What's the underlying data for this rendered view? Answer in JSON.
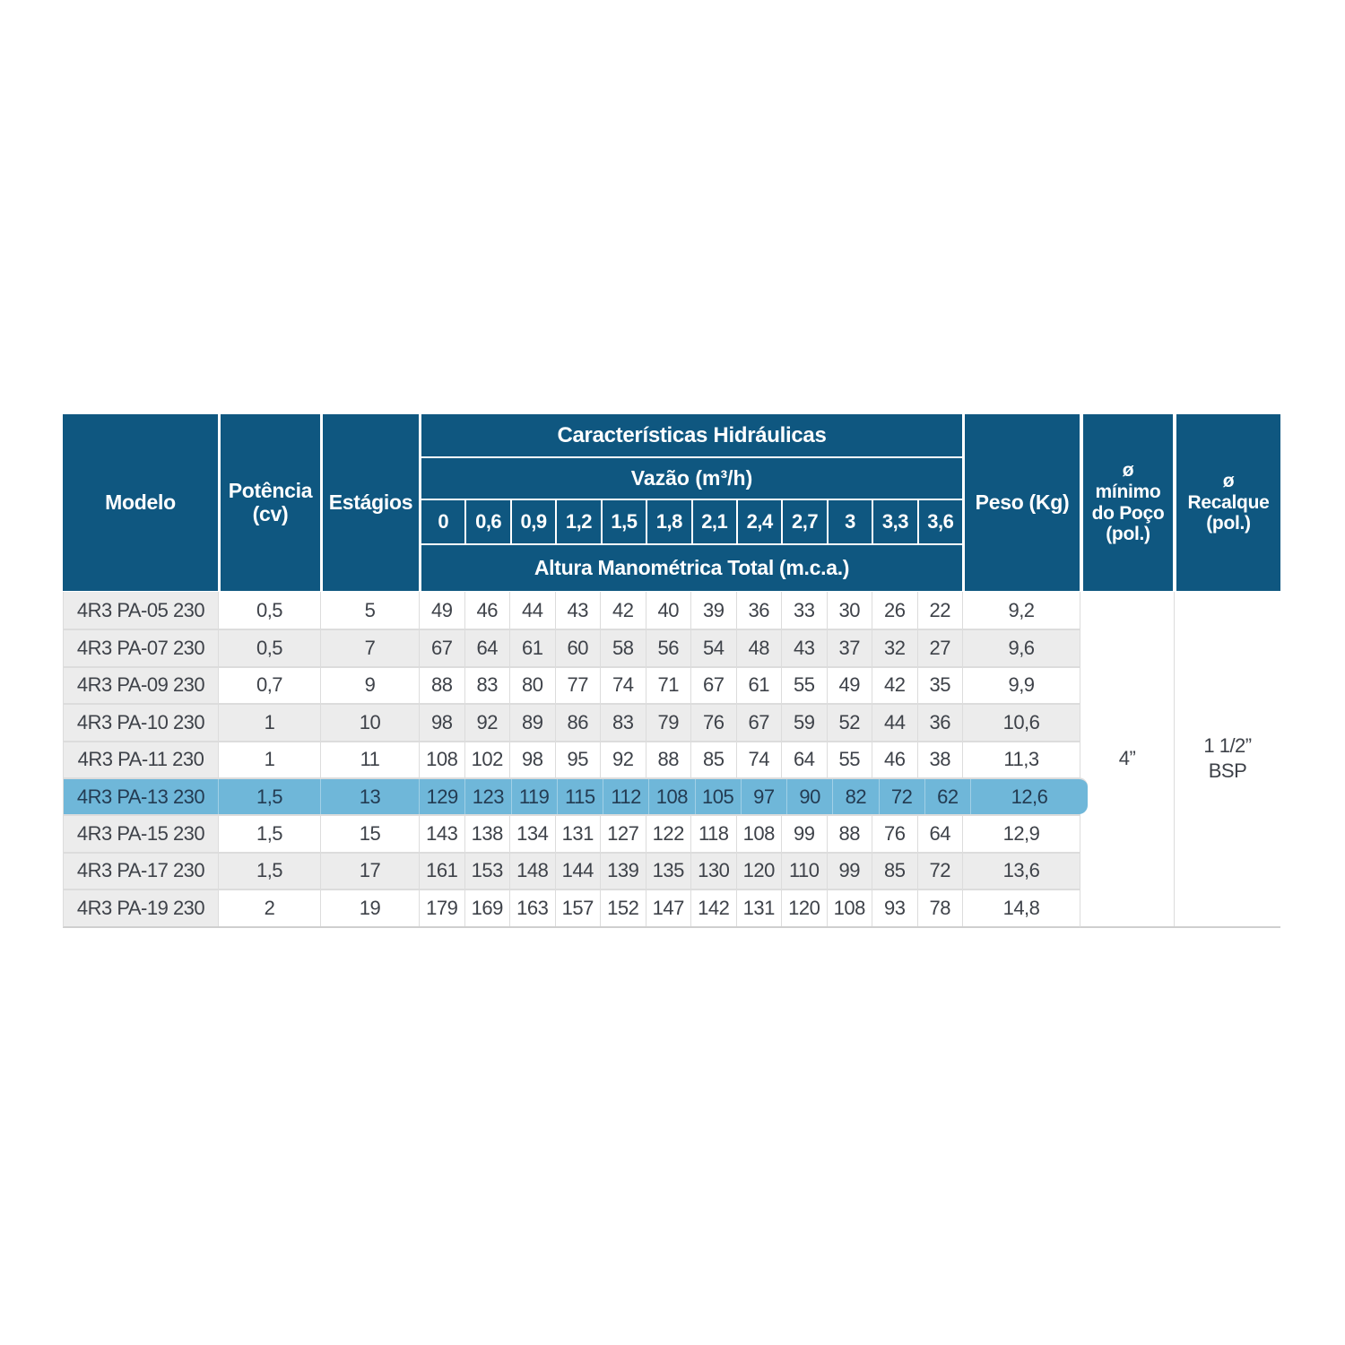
{
  "colors": {
    "header_bg": "#0F5780",
    "header_text": "#FFFFFF",
    "highlight_row_bg": "#6FB7D9",
    "row_bg": "#FFFFFF",
    "row_alt_bg": "#ECECEC",
    "modelo_col_bg": "#ECECEC",
    "border": "#DCDCDC",
    "cell_text": "#3E4249"
  },
  "table": {
    "headers": {
      "modelo": "Modelo",
      "potencia": "Potência\n(cv)",
      "estagios": "Estágios",
      "caracteristicas_hidraulicas": "Características Hidráulicas",
      "vazao": "Vazão (m³/h)",
      "vazao_columns": [
        "0",
        "0,6",
        "0,9",
        "1,2",
        "1,5",
        "1,8",
        "2,1",
        "2,4",
        "2,7",
        "3",
        "3,3",
        "3,6"
      ],
      "altura": "Altura Manométrica Total (m.c.a.)",
      "peso": "Peso (Kg)",
      "min_poco": "ø\nmínimo\ndo Poço\n(pol.)",
      "recalque": "ø\nRecalque\n(pol.)"
    },
    "rows": [
      {
        "modelo": "4R3 PA-05 230",
        "potencia": "0,5",
        "estagios": "5",
        "vazao": [
          "49",
          "46",
          "44",
          "43",
          "42",
          "40",
          "39",
          "36",
          "33",
          "30",
          "26",
          "22"
        ],
        "peso": "9,2"
      },
      {
        "modelo": "4R3 PA-07 230",
        "potencia": "0,5",
        "estagios": "7",
        "vazao": [
          "67",
          "64",
          "61",
          "60",
          "58",
          "56",
          "54",
          "48",
          "43",
          "37",
          "32",
          "27"
        ],
        "peso": "9,6"
      },
      {
        "modelo": "4R3 PA-09 230",
        "potencia": "0,7",
        "estagios": "9",
        "vazao": [
          "88",
          "83",
          "80",
          "77",
          "74",
          "71",
          "67",
          "61",
          "55",
          "49",
          "42",
          "35"
        ],
        "peso": "9,9"
      },
      {
        "modelo": "4R3 PA-10 230",
        "potencia": "1",
        "estagios": "10",
        "vazao": [
          "98",
          "92",
          "89",
          "86",
          "83",
          "79",
          "76",
          "67",
          "59",
          "52",
          "44",
          "36"
        ],
        "peso": "10,6"
      },
      {
        "modelo": "4R3 PA-11 230",
        "potencia": "1",
        "estagios": "11",
        "vazao": [
          "108",
          "102",
          "98",
          "95",
          "92",
          "88",
          "85",
          "74",
          "64",
          "55",
          "46",
          "38"
        ],
        "peso": "11,3"
      },
      {
        "modelo": "4R3 PA-13 230",
        "potencia": "1,5",
        "estagios": "13",
        "vazao": [
          "129",
          "123",
          "119",
          "115",
          "112",
          "108",
          "105",
          "97",
          "90",
          "82",
          "72",
          "62"
        ],
        "peso": "12,6"
      },
      {
        "modelo": "4R3 PA-15 230",
        "potencia": "1,5",
        "estagios": "15",
        "vazao": [
          "143",
          "138",
          "134",
          "131",
          "127",
          "122",
          "118",
          "108",
          "99",
          "88",
          "76",
          "64"
        ],
        "peso": "12,9"
      },
      {
        "modelo": "4R3 PA-17 230",
        "potencia": "1,5",
        "estagios": "17",
        "vazao": [
          "161",
          "153",
          "148",
          "144",
          "139",
          "135",
          "130",
          "120",
          "110",
          "99",
          "85",
          "72"
        ],
        "peso": "13,6"
      },
      {
        "modelo": "4R3 PA-19 230",
        "potencia": "2",
        "estagios": "19",
        "vazao": [
          "179",
          "169",
          "163",
          "157",
          "152",
          "147",
          "142",
          "131",
          "120",
          "108",
          "93",
          "78"
        ],
        "peso": "14,8"
      }
    ],
    "highlighted_model": "4R3 PA-13 230",
    "merged": {
      "min_poco_value": "4”",
      "recalque_value": "1 1/2”\nBSP"
    }
  }
}
